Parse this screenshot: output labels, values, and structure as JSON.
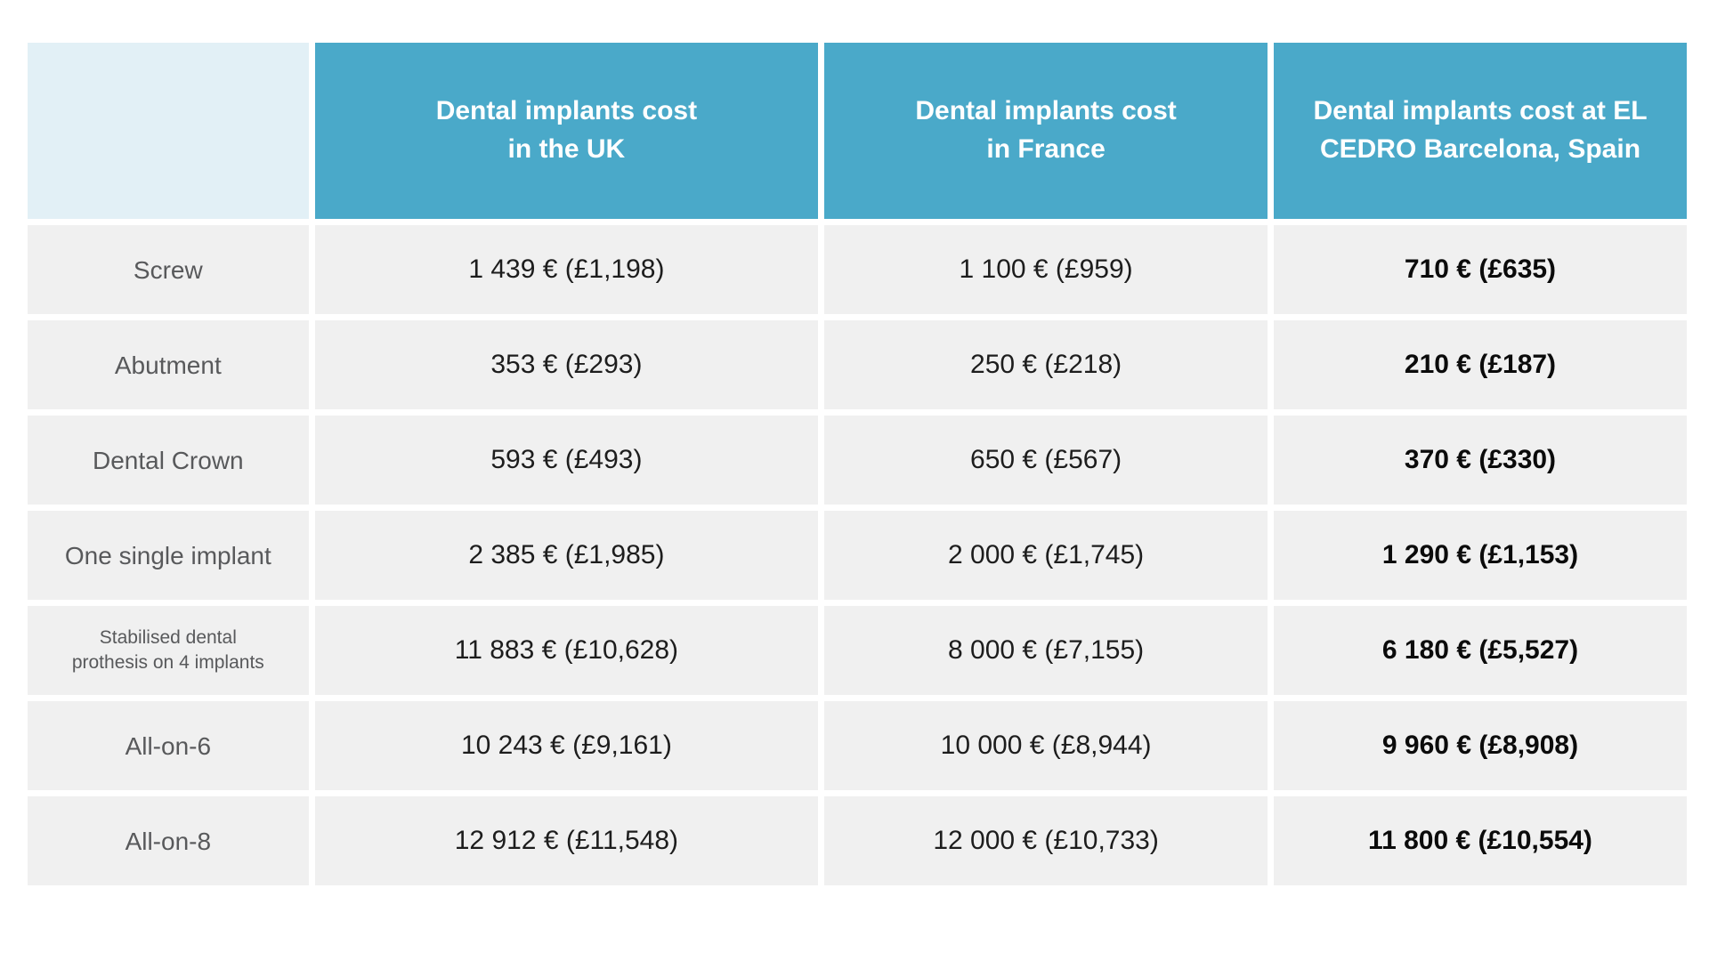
{
  "table": {
    "headers": {
      "corner": "",
      "uk": "Dental implants cost\nin the UK",
      "france": "Dental implants cost\nin France",
      "spain": "Dental implants cost at EL\nCEDRO Barcelona, Spain"
    },
    "rows": [
      {
        "label": "Screw",
        "uk": "1 439 € (£1,198)",
        "france": "1 100 € (£959)",
        "spain": "710 € (£635)"
      },
      {
        "label": "Abutment",
        "uk": "353 € (£293)",
        "france": "250 € (£218)",
        "spain": "210 € (£187)"
      },
      {
        "label": "Dental Crown",
        "uk": "593 € (£493)",
        "france": "650 € (£567)",
        "spain": "370 € (£330)"
      },
      {
        "label": "One single implant",
        "uk": "2 385 € (£1,985)",
        "france": "2 000 € (£1,745)",
        "spain": "1 290 € (£1,153)"
      },
      {
        "label": "Stabilised dental\nprothesis on 4 implants",
        "uk": "11 883 € (£10,628)",
        "france": "8 000 € (£7,155)",
        "spain": "6 180 € (£5,527)"
      },
      {
        "label": "All-on-6",
        "uk": "10 243 € (£9,161)",
        "france": "10 000 € (£8,944)",
        "spain": "9 960 € (£8,908)"
      },
      {
        "label": "All-on-8",
        "uk": "12 912 € (£11,548)",
        "france": "12 000 € (£10,733)",
        "spain": "11 800 € (£10,554)"
      }
    ],
    "colors": {
      "header_bg": "#4AA9C9",
      "corner_bg": "#E2F0F6",
      "row_bg": "#F0F0F0",
      "label_text": "#58595B",
      "value_text": "#1D1D1D",
      "highlight_text": "#0B0B0B",
      "gutter": "#FFFFFF"
    }
  }
}
